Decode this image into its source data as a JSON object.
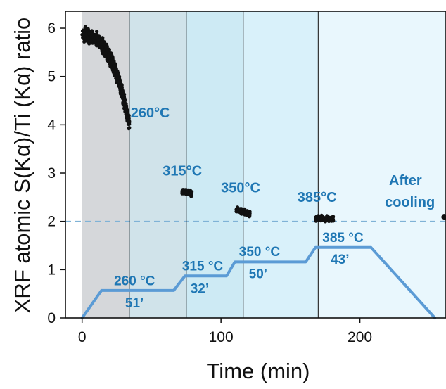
{
  "chart_data": {
    "type": "scatter",
    "xlabel": "Time (min)",
    "ylabel": "XRF atomic S(Kα)/Ti (Kα) ratio",
    "xlim": [
      -12,
      262
    ],
    "ylim": [
      0,
      6.35
    ],
    "x_ticks": [
      0,
      100,
      200
    ],
    "y_ticks": [
      0,
      1,
      2,
      3,
      4,
      5,
      6
    ],
    "x_tick_labels": [
      "0",
      "100",
      "200"
    ],
    "y_tick_labels": [
      "0",
      "1",
      "2",
      "3",
      "4",
      "5",
      "6"
    ],
    "grid": false,
    "reference_line": {
      "y": 2.0,
      "style": "dashed",
      "color": "#7fb2d6"
    },
    "regions": [
      {
        "x0": 0,
        "x1": 34,
        "color": "#d5d7da"
      },
      {
        "x0": 34,
        "x1": 75,
        "color": "#d0e3ea"
      },
      {
        "x0": 75,
        "x1": 116,
        "color": "#cdeaf4"
      },
      {
        "x0": 116,
        "x1": 170,
        "color": "#d9f1fa"
      },
      {
        "x0": 170,
        "x1": 262,
        "color": "#e9f7fd"
      }
    ],
    "region_boundaries": [
      34,
      75,
      116,
      170
    ],
    "temperature_profile": {
      "color": "#5b9bd5",
      "x": [
        0,
        14,
        66,
        74,
        104,
        110,
        161,
        168,
        208,
        254
      ],
      "y": [
        0,
        0.57,
        0.57,
        0.87,
        0.87,
        1.16,
        1.16,
        1.46,
        1.46,
        0
      ]
    },
    "clusters": [
      {
        "x": [
          0,
          34
        ],
        "y_center": [
          5.85,
          4.0
        ],
        "spread": 0.16,
        "shape": "decay",
        "color": "#111111"
      },
      {
        "x": [
          72,
          79
        ],
        "y_center": [
          2.62,
          2.58
        ],
        "spread": 0.06,
        "color": "#111111"
      },
      {
        "x": [
          111,
          121
        ],
        "y_center": [
          2.25,
          2.15
        ],
        "spread": 0.06,
        "color": "#111111"
      },
      {
        "x": [
          168,
          181
        ],
        "y_center": [
          2.07,
          2.04
        ],
        "spread": 0.06,
        "color": "#111111"
      },
      {
        "x": [
          260,
          262
        ],
        "y_center": [
          2.1,
          2.08
        ],
        "spread": 0.03,
        "color": "#111111"
      }
    ],
    "annotations": {
      "points": [
        {
          "text": "260°C",
          "x": 35,
          "y": 4.15
        },
        {
          "text": "315°C",
          "x": 58,
          "y": 2.95
        },
        {
          "text": "350°C",
          "x": 100,
          "y": 2.6
        },
        {
          "text": "385°C",
          "x": 155,
          "y": 2.4
        },
        {
          "text": "After",
          "x": 221,
          "y": 2.75
        },
        {
          "text": "cooling",
          "x": 218,
          "y": 2.3
        }
      ],
      "profile": [
        {
          "text": "260 °C",
          "x": 23,
          "y": 0.68
        },
        {
          "text": "51’",
          "x": 31,
          "y": 0.22
        },
        {
          "text": "315 °C",
          "x": 72,
          "y": 0.98
        },
        {
          "text": "32’",
          "x": 78,
          "y": 0.52
        },
        {
          "text": "350 °C",
          "x": 113,
          "y": 1.28
        },
        {
          "text": "50’",
          "x": 120,
          "y": 0.82
        },
        {
          "text": "385 °C",
          "x": 173,
          "y": 1.57
        },
        {
          "text": "43’",
          "x": 179,
          "y": 1.12
        }
      ]
    }
  }
}
